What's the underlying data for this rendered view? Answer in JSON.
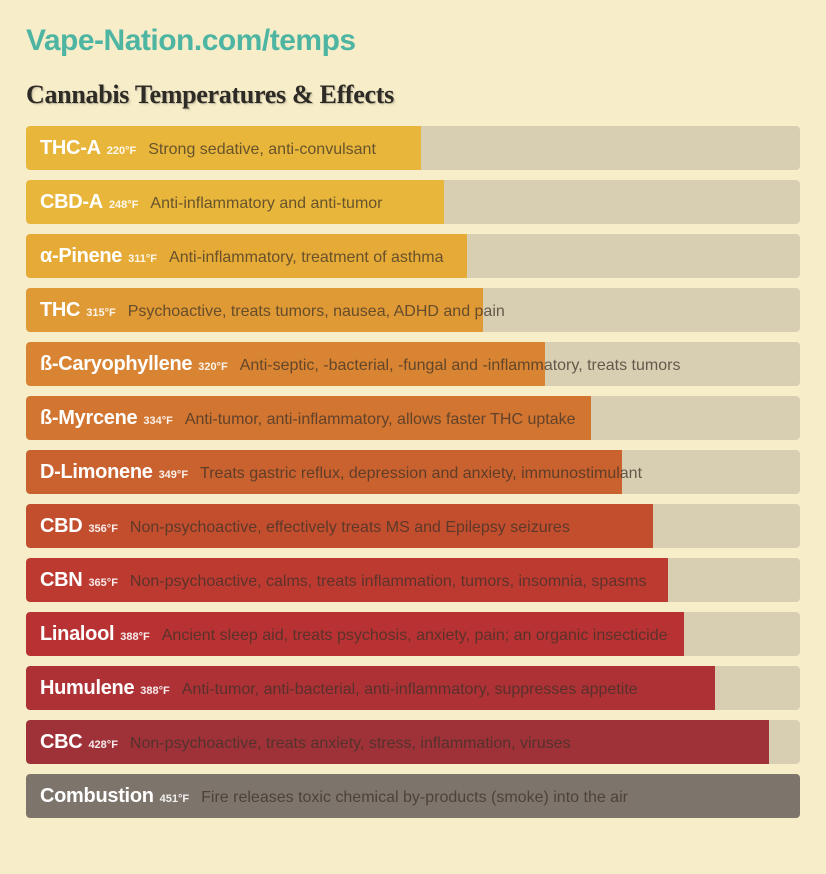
{
  "page": {
    "background_color": "#f7edc9",
    "row_bg_color": "#d8cfb3",
    "site_title": "Vape-Nation.com/temps",
    "site_title_color": "#4fb5a3",
    "heading": "Cannabis Temperatures & Effects",
    "heading_color": "#2e2a26"
  },
  "chart": {
    "type": "bar",
    "orientation": "horizontal",
    "temp_min": 200,
    "temp_max": 451,
    "rows": [
      {
        "name": "THC-A",
        "temp": "220°F",
        "temp_value": 220,
        "effect": "Strong sedative, anti-convulsant",
        "fill_color": "#e8b63a",
        "fill_pct": 51
      },
      {
        "name": "CBD-A",
        "temp": "248°F",
        "temp_value": 248,
        "effect": "Anti-inflammatory and anti-tumor",
        "fill_color": "#e8b63a",
        "fill_pct": 54
      },
      {
        "name": "α-Pinene",
        "temp": "311°F",
        "temp_value": 311,
        "effect": "Anti-inflammatory, treatment of asthma",
        "fill_color": "#e6ab37",
        "fill_pct": 57
      },
      {
        "name": "THC",
        "temp": "315°F",
        "temp_value": 315,
        "effect": "Psychoactive, treats tumors, nausea, ADHD and pain",
        "fill_color": "#e09a35",
        "fill_pct": 59
      },
      {
        "name": "ß-Caryophyllene",
        "temp": "320°F",
        "temp_value": 320,
        "effect": "Anti-septic, -bacterial, -fungal and -inflammatory, treats tumors",
        "fill_color": "#d88432",
        "fill_pct": 67
      },
      {
        "name": "ß-Myrcene",
        "temp": "334°F",
        "temp_value": 334,
        "effect": "Anti-tumor, anti-inflammatory, allows faster THC uptake",
        "fill_color": "#d17530",
        "fill_pct": 73
      },
      {
        "name": "D-Limonene",
        "temp": "349°F",
        "temp_value": 349,
        "effect": "Treats gastric reflux, depression and anxiety, immunostimulant",
        "fill_color": "#c9622e",
        "fill_pct": 77
      },
      {
        "name": "CBD",
        "temp": "356°F",
        "temp_value": 356,
        "effect": "Non-psychoactive, effectively treats MS and Epilepsy seizures",
        "fill_color": "#c24e2e",
        "fill_pct": 81
      },
      {
        "name": "CBN",
        "temp": "365°F",
        "temp_value": 365,
        "effect": "Non-psychoactive, calms, treats inflammation, tumors, insomnia, spasms",
        "fill_color": "#bd3a31",
        "fill_pct": 83
      },
      {
        "name": "Linalool",
        "temp": "388°F",
        "temp_value": 388,
        "effect": "Ancient sleep aid, treats psychosis, anxiety, pain; an organic insecticide",
        "fill_color": "#b83233",
        "fill_pct": 85
      },
      {
        "name": "Humulene",
        "temp": "388°F",
        "temp_value": 388,
        "effect": "Anti-tumor, anti-bacterial, anti-inflammatory, suppresses appetite",
        "fill_color": "#ae3136",
        "fill_pct": 89
      },
      {
        "name": "CBC",
        "temp": "428°F",
        "temp_value": 428,
        "effect": "Non-psychoactive, treats anxiety, stress, inflammation, viruses",
        "fill_color": "#9e3238",
        "fill_pct": 96
      },
      {
        "name": "Combustion",
        "temp": "451°F",
        "temp_value": 451,
        "effect": "Fire releases toxic chemical by-products (smoke) into the air",
        "fill_color": "#7d746c",
        "fill_pct": 100
      }
    ]
  }
}
